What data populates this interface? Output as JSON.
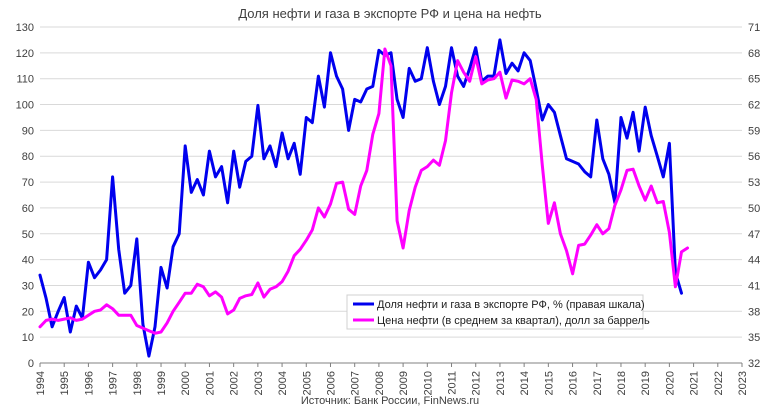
{
  "chart_data": {
    "type": "line",
    "title": "Доля нефти и газа в экспорте РФ и цена на нефть",
    "source": "Источник: Банк России, FinNews.ru",
    "x_ticks": [
      "1994",
      "1995",
      "1996",
      "1997",
      "1998",
      "1999",
      "2000",
      "2001",
      "2002",
      "2003",
      "2004",
      "2005",
      "2006",
      "2007",
      "2008",
      "2009",
      "2010",
      "2011",
      "2012",
      "2013",
      "2014",
      "2015",
      "2016",
      "2017",
      "2018",
      "2019",
      "2020",
      "2021",
      "2022",
      "2023"
    ],
    "xlim": [
      1994,
      2023
    ],
    "left_axis": {
      "ylim": [
        0,
        130
      ],
      "ticks": [
        "0",
        "10",
        "20",
        "30",
        "40",
        "50",
        "60",
        "70",
        "80",
        "90",
        "100",
        "110",
        "120",
        "130"
      ]
    },
    "right_axis": {
      "ylim": [
        32,
        71
      ],
      "ticks": [
        "32",
        "35",
        "38",
        "41",
        "44",
        "47",
        "50",
        "53",
        "56",
        "59",
        "62",
        "65",
        "68",
        "71"
      ]
    },
    "grid": "horizontal",
    "legend_position": "bottom-right",
    "colors": {
      "share": "#0000ee",
      "price": "#ff00ff",
      "grid": "#d9d9d9",
      "axis": "#808080"
    },
    "series": [
      {
        "name": "Доля нефти и газа в экспорте РФ, % (правая шкала)",
        "axis": "right",
        "color": "#0000ee",
        "points": [
          [
            1994.0,
            42.2
          ],
          [
            1994.25,
            39.5
          ],
          [
            1994.5,
            36.2
          ],
          [
            1994.75,
            38.0
          ],
          [
            1995.0,
            39.6
          ],
          [
            1995.25,
            35.6
          ],
          [
            1995.5,
            38.6
          ],
          [
            1995.75,
            37.2
          ],
          [
            1996.0,
            43.7
          ],
          [
            1996.25,
            41.9
          ],
          [
            1996.5,
            42.8
          ],
          [
            1996.75,
            44.0
          ],
          [
            1997.0,
            53.6
          ],
          [
            1997.25,
            45.2
          ],
          [
            1997.5,
            40.1
          ],
          [
            1997.75,
            41.0
          ],
          [
            1998.0,
            46.4
          ],
          [
            1998.25,
            36.5
          ],
          [
            1998.5,
            32.8
          ],
          [
            1998.75,
            36.2
          ],
          [
            1999.0,
            43.1
          ],
          [
            1999.25,
            40.7
          ],
          [
            1999.5,
            45.5
          ],
          [
            1999.75,
            47.0
          ],
          [
            2000.0,
            57.2
          ],
          [
            2000.25,
            51.8
          ],
          [
            2000.5,
            53.3
          ],
          [
            2000.75,
            51.5
          ],
          [
            2001.0,
            56.6
          ],
          [
            2001.25,
            53.6
          ],
          [
            2001.5,
            54.8
          ],
          [
            2001.75,
            50.6
          ],
          [
            2002.0,
            56.6
          ],
          [
            2002.25,
            52.4
          ],
          [
            2002.5,
            55.4
          ],
          [
            2002.75,
            56.0
          ],
          [
            2003.0,
            61.9
          ],
          [
            2003.25,
            55.7
          ],
          [
            2003.5,
            57.2
          ],
          [
            2003.75,
            54.8
          ],
          [
            2004.0,
            58.7
          ],
          [
            2004.25,
            55.7
          ],
          [
            2004.5,
            57.5
          ],
          [
            2004.75,
            53.9
          ],
          [
            2005.0,
            60.5
          ],
          [
            2005.25,
            59.9
          ],
          [
            2005.5,
            65.3
          ],
          [
            2005.75,
            61.7
          ],
          [
            2006.0,
            68.0
          ],
          [
            2006.25,
            65.3
          ],
          [
            2006.5,
            63.8
          ],
          [
            2006.75,
            59.0
          ],
          [
            2007.0,
            62.6
          ],
          [
            2007.25,
            62.3
          ],
          [
            2007.5,
            63.8
          ],
          [
            2007.75,
            64.1
          ],
          [
            2008.0,
            68.3
          ],
          [
            2008.25,
            67.7
          ],
          [
            2008.5,
            68.0
          ],
          [
            2008.75,
            62.6
          ],
          [
            2009.0,
            60.5
          ],
          [
            2009.25,
            66.2
          ],
          [
            2009.5,
            64.7
          ],
          [
            2009.75,
            65.0
          ],
          [
            2010.0,
            68.6
          ],
          [
            2010.25,
            64.7
          ],
          [
            2010.5,
            62.0
          ],
          [
            2010.75,
            64.1
          ],
          [
            2011.0,
            68.6
          ],
          [
            2011.25,
            65.3
          ],
          [
            2011.5,
            64.1
          ],
          [
            2011.75,
            66.2
          ],
          [
            2012.0,
            68.6
          ],
          [
            2012.25,
            64.7
          ],
          [
            2012.5,
            65.3
          ],
          [
            2012.75,
            65.3
          ],
          [
            2013.0,
            69.5
          ],
          [
            2013.25,
            65.6
          ],
          [
            2013.5,
            66.8
          ],
          [
            2013.75,
            65.9
          ],
          [
            2014.0,
            68.0
          ],
          [
            2014.25,
            67.1
          ],
          [
            2014.5,
            63.8
          ],
          [
            2014.75,
            60.2
          ],
          [
            2015.0,
            62.0
          ],
          [
            2015.25,
            61.1
          ],
          [
            2015.5,
            58.4
          ],
          [
            2015.75,
            55.7
          ],
          [
            2016.0,
            55.4
          ],
          [
            2016.25,
            55.1
          ],
          [
            2016.5,
            54.2
          ],
          [
            2016.75,
            53.6
          ],
          [
            2017.0,
            60.2
          ],
          [
            2017.25,
            55.7
          ],
          [
            2017.5,
            53.9
          ],
          [
            2017.75,
            50.6
          ],
          [
            2018.0,
            60.5
          ],
          [
            2018.25,
            58.1
          ],
          [
            2018.5,
            61.1
          ],
          [
            2018.75,
            56.6
          ],
          [
            2019.0,
            61.7
          ],
          [
            2019.25,
            58.4
          ],
          [
            2019.5,
            56.0
          ],
          [
            2019.75,
            53.6
          ],
          [
            2020.0,
            57.5
          ],
          [
            2020.25,
            42.5
          ],
          [
            2020.5,
            40.1
          ]
        ]
      },
      {
        "name": "Цена нефти (в среднем за квартал), долл за баррель",
        "axis": "left",
        "color": "#ff00ff",
        "points": [
          [
            1994.0,
            14.0
          ],
          [
            1994.25,
            16.5
          ],
          [
            1994.5,
            17.0
          ],
          [
            1994.75,
            16.5
          ],
          [
            1995.0,
            17.0
          ],
          [
            1995.25,
            17.5
          ],
          [
            1995.5,
            16.5
          ],
          [
            1995.75,
            17.0
          ],
          [
            1996.0,
            18.5
          ],
          [
            1996.25,
            20.0
          ],
          [
            1996.5,
            20.5
          ],
          [
            1996.75,
            22.5
          ],
          [
            1997.0,
            21.0
          ],
          [
            1997.25,
            18.5
          ],
          [
            1997.5,
            18.5
          ],
          [
            1997.75,
            18.5
          ],
          [
            1998.0,
            14.5
          ],
          [
            1998.25,
            13.5
          ],
          [
            1998.5,
            12.5
          ],
          [
            1998.75,
            11.5
          ],
          [
            1999.0,
            12.0
          ],
          [
            1999.25,
            15.5
          ],
          [
            1999.5,
            20.0
          ],
          [
            1999.75,
            23.5
          ],
          [
            2000.0,
            27.0
          ],
          [
            2000.25,
            27.0
          ],
          [
            2000.5,
            30.5
          ],
          [
            2000.75,
            29.5
          ],
          [
            2001.0,
            26.0
          ],
          [
            2001.25,
            27.5
          ],
          [
            2001.5,
            25.5
          ],
          [
            2001.75,
            19.0
          ],
          [
            2002.0,
            20.5
          ],
          [
            2002.25,
            25.0
          ],
          [
            2002.5,
            26.0
          ],
          [
            2002.75,
            26.5
          ],
          [
            2003.0,
            31.0
          ],
          [
            2003.25,
            25.5
          ],
          [
            2003.5,
            28.5
          ],
          [
            2003.75,
            29.5
          ],
          [
            2004.0,
            31.5
          ],
          [
            2004.25,
            35.5
          ],
          [
            2004.5,
            41.5
          ],
          [
            2004.75,
            44.0
          ],
          [
            2005.0,
            47.5
          ],
          [
            2005.25,
            51.5
          ],
          [
            2005.5,
            60.0
          ],
          [
            2005.75,
            56.5
          ],
          [
            2006.0,
            61.5
          ],
          [
            2006.25,
            69.5
          ],
          [
            2006.5,
            70.0
          ],
          [
            2006.75,
            59.5
          ],
          [
            2007.0,
            57.5
          ],
          [
            2007.25,
            68.5
          ],
          [
            2007.5,
            74.5
          ],
          [
            2007.75,
            88.5
          ],
          [
            2008.0,
            96.5
          ],
          [
            2008.25,
            121.5
          ],
          [
            2008.5,
            115.0
          ],
          [
            2008.75,
            55.0
          ],
          [
            2009.0,
            44.5
          ],
          [
            2009.25,
            59.0
          ],
          [
            2009.5,
            68.0
          ],
          [
            2009.75,
            74.5
          ],
          [
            2010.0,
            76.0
          ],
          [
            2010.25,
            78.5
          ],
          [
            2010.5,
            76.5
          ],
          [
            2010.75,
            86.0
          ],
          [
            2011.0,
            104.5
          ],
          [
            2011.25,
            117.0
          ],
          [
            2011.5,
            112.5
          ],
          [
            2011.75,
            109.0
          ],
          [
            2012.0,
            118.5
          ],
          [
            2012.25,
            108.0
          ],
          [
            2012.5,
            109.5
          ],
          [
            2012.75,
            110.0
          ],
          [
            2013.0,
            112.5
          ],
          [
            2013.25,
            102.5
          ],
          [
            2013.5,
            109.5
          ],
          [
            2013.75,
            109.0
          ],
          [
            2014.0,
            108.0
          ],
          [
            2014.25,
            110.0
          ],
          [
            2014.5,
            102.0
          ],
          [
            2014.75,
            76.5
          ],
          [
            2015.0,
            54.0
          ],
          [
            2015.25,
            62.0
          ],
          [
            2015.5,
            50.0
          ],
          [
            2015.75,
            43.5
          ],
          [
            2016.0,
            34.5
          ],
          [
            2016.25,
            45.5
          ],
          [
            2016.5,
            46.0
          ],
          [
            2016.75,
            49.5
          ],
          [
            2017.0,
            53.5
          ],
          [
            2017.25,
            50.0
          ],
          [
            2017.5,
            52.0
          ],
          [
            2017.75,
            61.0
          ],
          [
            2018.0,
            67.0
          ],
          [
            2018.25,
            74.5
          ],
          [
            2018.5,
            75.0
          ],
          [
            2018.75,
            68.5
          ],
          [
            2019.0,
            63.0
          ],
          [
            2019.25,
            68.5
          ],
          [
            2019.5,
            62.0
          ],
          [
            2019.75,
            62.5
          ],
          [
            2020.0,
            50.5
          ],
          [
            2020.25,
            29.5
          ],
          [
            2020.5,
            43.0
          ],
          [
            2020.75,
            44.5
          ]
        ]
      }
    ]
  }
}
